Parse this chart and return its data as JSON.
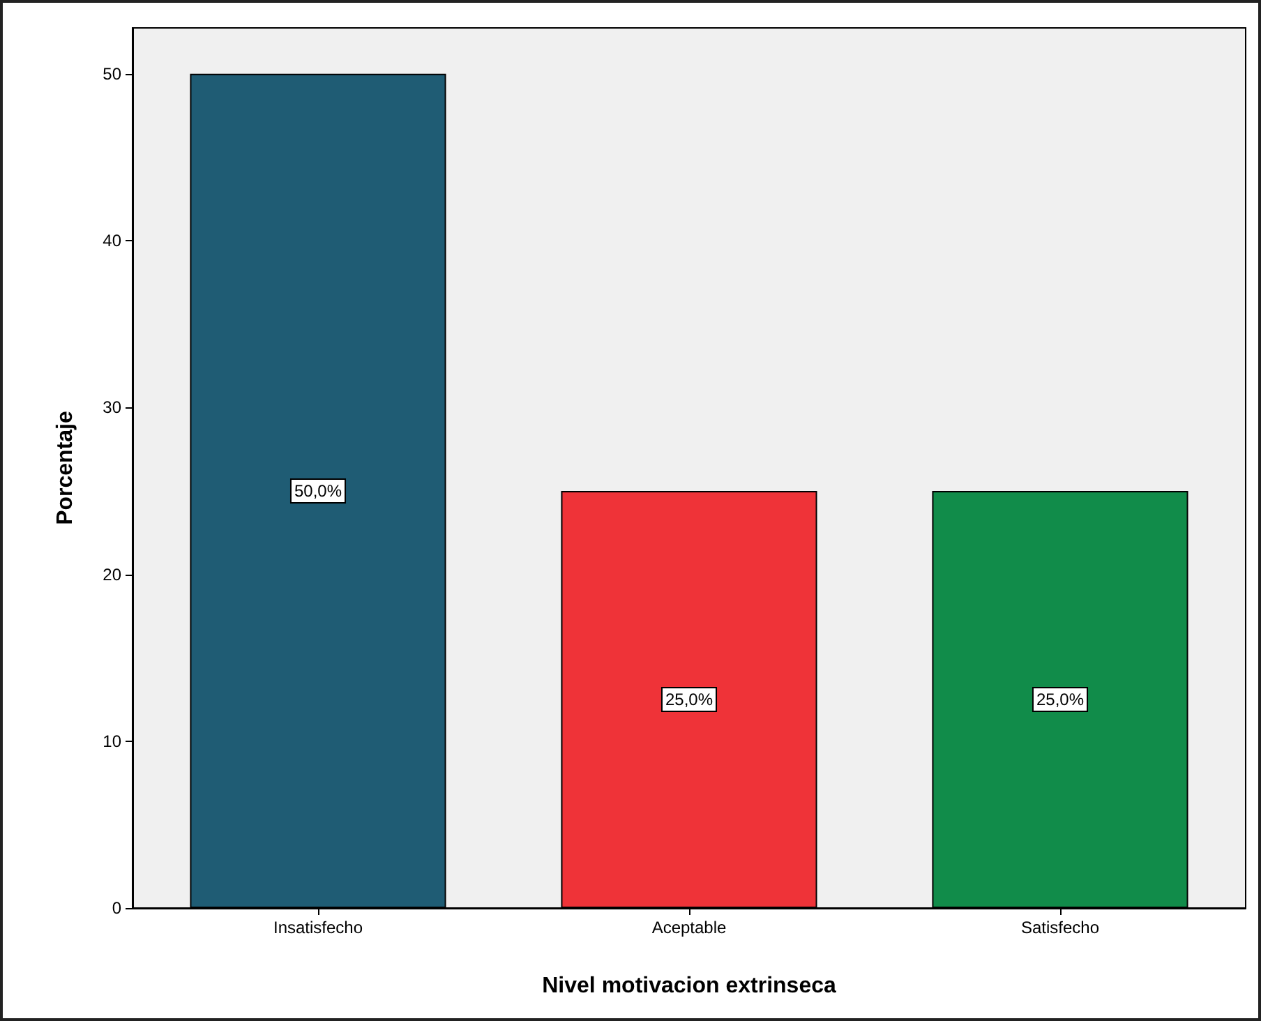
{
  "chart_data": {
    "type": "bar",
    "xlabel": "Nivel motivacion extrinseca",
    "ylabel": "Porcentaje",
    "categories": [
      "Insatisfecho",
      "Aceptable",
      "Satisfecho"
    ],
    "values": [
      50,
      25,
      25
    ],
    "colors": [
      "#1f5c74",
      "#ef3338",
      "#118c4a"
    ],
    "value_labels": [
      "50,0%",
      "25,0%",
      "25,0%"
    ],
    "ylim": [
      0,
      52.75
    ],
    "yticks": [
      0,
      10,
      20,
      30,
      40,
      50
    ],
    "grid": false
  }
}
